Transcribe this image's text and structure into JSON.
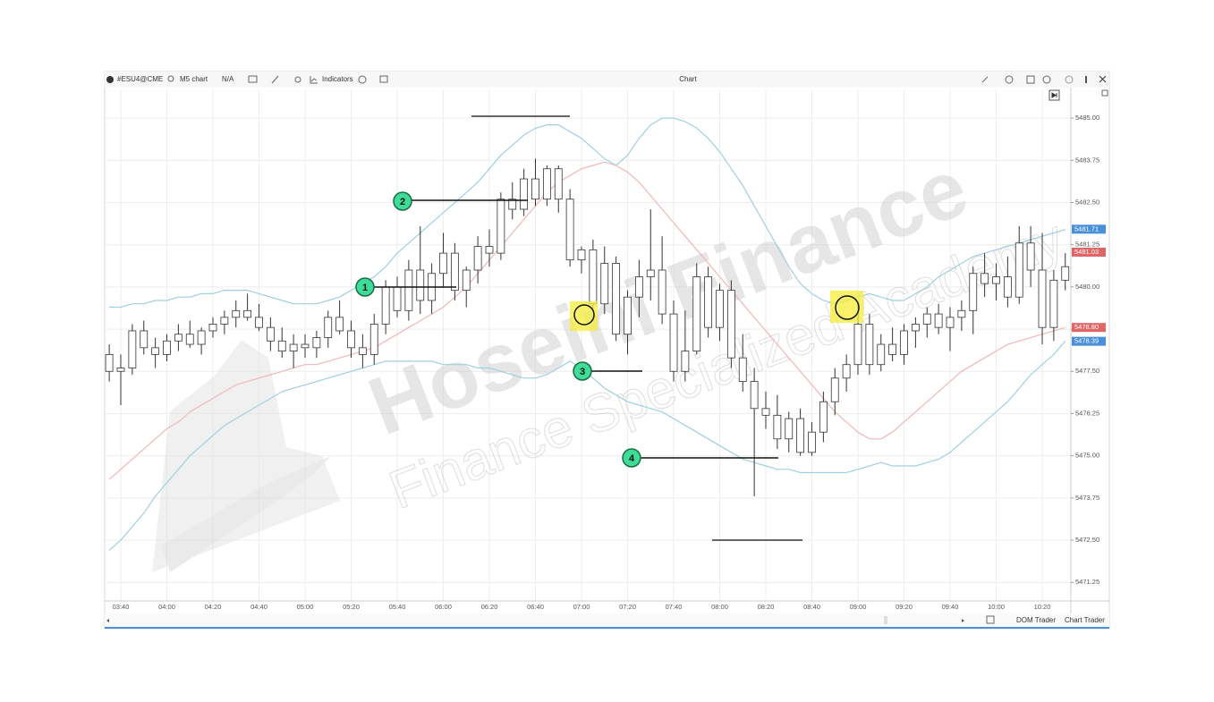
{
  "toolbar": {
    "symbol": "#ESU4@CME",
    "timeframe": "M5 chart",
    "account": "N/A",
    "indicators": "Indicators",
    "title": "Chart"
  },
  "footer": {
    "dom_trader": "DOM Trader",
    "chart_trader": "Chart Trader"
  },
  "watermark": {
    "brand": "Hoseini Finance",
    "tagline": "Finance Specialized Academy"
  },
  "annotations": [
    "1",
    "2",
    "3",
    "4"
  ],
  "chart_data": {
    "type": "candlestick",
    "categories": [
      null,
      "03:40",
      null,
      null,
      null,
      "04:00",
      null,
      null,
      null,
      "04:20",
      null,
      null,
      null,
      "04:40",
      null,
      null,
      null,
      "05:00",
      null,
      null,
      null,
      "05:20",
      null,
      null,
      null,
      "05:40",
      null,
      null,
      null,
      "06:00",
      null,
      null,
      null,
      "06:20",
      null,
      null,
      null,
      "06:40",
      null,
      null,
      null,
      "07:00",
      null,
      null,
      null,
      "07:20",
      null,
      null,
      null,
      "07:40",
      null,
      null,
      null,
      "08:00",
      null,
      null,
      null,
      "08:20",
      null,
      null,
      null,
      "08:40",
      null,
      null,
      null,
      "09:00",
      null,
      null,
      null,
      "09:20",
      null,
      null,
      null,
      "09:40",
      null,
      null,
      null,
      "10:00",
      null,
      null,
      null,
      "10:20",
      null,
      null
    ],
    "open": [
      5478.0,
      5477.5,
      5477.6,
      5478.7,
      5478.2,
      5478.0,
      5478.4,
      5478.6,
      5478.3,
      5478.7,
      5478.9,
      5479.1,
      5479.3,
      5479.1,
      5478.8,
      5478.4,
      5478.1,
      5478.3,
      5478.2,
      5478.5,
      5479.1,
      5478.7,
      5478.2,
      5478.0,
      5478.9,
      5480.0,
      5479.3,
      5480.5,
      5479.6,
      5480.4,
      5481.0,
      5479.9,
      5480.5,
      5481.2,
      5481.0,
      5482.6,
      5482.3,
      5483.2,
      5482.6,
      5483.5,
      5482.6,
      5480.8,
      5481.1,
      5479.5,
      5480.7,
      5478.6,
      5479.7,
      5480.3,
      5480.5,
      5479.2,
      5477.5,
      5478.1,
      5480.3,
      5478.8,
      5479.9,
      5477.9,
      5477.2,
      5476.4,
      5476.2,
      5475.5,
      5476.1,
      5475.1,
      5475.7,
      5476.6,
      5477.3,
      5477.7,
      5478.9,
      5477.7,
      5478.3,
      5478.0,
      5478.7,
      5478.9,
      5479.2,
      5478.8,
      5479.1,
      5479.3,
      5480.4,
      5480.1,
      5480.3,
      5479.7,
      5481.3,
      5480.5,
      5478.8,
      5480.2
    ],
    "high": [
      5478.3,
      5478.0,
      5478.9,
      5479.0,
      5478.5,
      5478.6,
      5478.9,
      5479.0,
      5478.8,
      5479.1,
      5479.3,
      5479.6,
      5479.8,
      5479.5,
      5479.1,
      5478.8,
      5478.6,
      5478.6,
      5478.7,
      5479.3,
      5479.6,
      5479.0,
      5478.6,
      5479.2,
      5480.2,
      5480.3,
      5480.8,
      5481.8,
      5480.7,
      5481.6,
      5481.3,
      5480.6,
      5481.5,
      5481.7,
      5482.8,
      5483.1,
      5483.5,
      5483.8,
      5483.6,
      5483.6,
      5482.9,
      5481.2,
      5481.4,
      5481.2,
      5480.9,
      5479.9,
      5480.8,
      5482.3,
      5481.5,
      5479.6,
      5479.3,
      5480.7,
      5480.6,
      5480.1,
      5480.2,
      5478.6,
      5477.6,
      5476.9,
      5476.8,
      5476.3,
      5476.4,
      5476.0,
      5476.9,
      5477.6,
      5478.0,
      5479.5,
      5479.2,
      5478.6,
      5478.8,
      5478.9,
      5479.1,
      5479.4,
      5479.5,
      5479.4,
      5479.6,
      5480.6,
      5481.0,
      5480.7,
      5480.9,
      5481.8,
      5481.8,
      5481.6,
      5480.5,
      5481.0
    ],
    "low": [
      5477.2,
      5476.5,
      5477.4,
      5478.0,
      5477.6,
      5477.8,
      5478.1,
      5478.2,
      5478.0,
      5478.5,
      5478.6,
      5478.8,
      5479.0,
      5478.7,
      5478.1,
      5477.9,
      5477.6,
      5477.9,
      5477.9,
      5478.2,
      5478.6,
      5477.9,
      5477.6,
      5477.7,
      5478.6,
      5479.1,
      5479.0,
      5479.2,
      5479.2,
      5480.0,
      5479.6,
      5479.4,
      5480.1,
      5480.6,
      5480.8,
      5482.0,
      5482.1,
      5482.4,
      5482.4,
      5482.2,
      5480.6,
      5480.4,
      5479.3,
      5479.2,
      5478.4,
      5478.0,
      5479.1,
      5479.6,
      5478.9,
      5477.2,
      5477.2,
      5478.0,
      5478.5,
      5478.4,
      5477.6,
      5476.9,
      5473.8,
      5475.8,
      5475.2,
      5475.1,
      5475.0,
      5475.0,
      5475.4,
      5476.2,
      5476.9,
      5477.4,
      5477.4,
      5477.5,
      5477.8,
      5477.7,
      5478.2,
      5478.5,
      5478.6,
      5478.1,
      5478.7,
      5478.6,
      5479.7,
      5479.6,
      5479.4,
      5479.5,
      5480.0,
      5478.3,
      5478.4,
      5479.9
    ],
    "close": [
      5477.5,
      5477.6,
      5478.7,
      5478.2,
      5478.0,
      5478.4,
      5478.6,
      5478.3,
      5478.7,
      5478.9,
      5479.1,
      5479.3,
      5479.1,
      5478.8,
      5478.4,
      5478.1,
      5478.3,
      5478.2,
      5478.5,
      5479.1,
      5478.7,
      5478.2,
      5478.0,
      5478.9,
      5480.0,
      5479.3,
      5480.5,
      5479.6,
      5480.4,
      5481.0,
      5479.9,
      5480.5,
      5481.2,
      5481.0,
      5482.6,
      5482.3,
      5483.2,
      5482.6,
      5483.5,
      5482.6,
      5480.8,
      5481.1,
      5479.5,
      5480.7,
      5478.6,
      5479.7,
      5480.3,
      5480.5,
      5479.2,
      5477.5,
      5478.1,
      5480.3,
      5478.8,
      5479.9,
      5477.9,
      5477.2,
      5476.4,
      5476.2,
      5475.5,
      5476.1,
      5475.1,
      5475.7,
      5476.6,
      5477.3,
      5477.7,
      5478.9,
      5477.7,
      5478.3,
      5478.0,
      5478.7,
      5478.9,
      5479.2,
      5478.8,
      5479.1,
      5479.3,
      5480.4,
      5480.1,
      5480.3,
      5479.7,
      5481.3,
      5480.5,
      5478.8,
      5480.2,
      5480.6
    ],
    "candle_color": "#ffffff",
    "candle_outline": "#333333",
    "overlays": [
      {
        "color": "#9fd0e0",
        "values": [
          5479.4,
          5479.4,
          5479.5,
          5479.5,
          5479.6,
          5479.6,
          5479.7,
          5479.7,
          5479.8,
          5479.8,
          5479.9,
          5479.9,
          5479.9,
          5479.8,
          5479.7,
          5479.6,
          5479.5,
          5479.5,
          5479.5,
          5479.6,
          5479.7,
          5479.9,
          5480.1,
          5480.3,
          5480.6,
          5481.0,
          5481.3,
          5481.6,
          5481.9,
          5482.2,
          5482.5,
          5482.8,
          5483.1,
          5483.5,
          5483.9,
          5484.2,
          5484.5,
          5484.7,
          5484.8,
          5484.8,
          5484.6,
          5484.4,
          5484.1,
          5483.8,
          5483.6,
          5483.9,
          5484.4,
          5484.8,
          5485.0,
          5485.0,
          5484.9,
          5484.7,
          5484.4,
          5484.0,
          5483.5,
          5483.0,
          5482.4,
          5481.8,
          5481.2,
          5480.6,
          5480.1,
          5479.8,
          5479.6,
          5479.5,
          5479.6,
          5479.7,
          5479.8,
          5479.7,
          5479.6,
          5479.6,
          5479.8,
          5480.0,
          5480.3,
          5480.5,
          5480.7,
          5480.9,
          5481.0,
          5481.1,
          5481.2,
          5481.3,
          5481.4,
          5481.5,
          5481.6,
          5481.7
        ]
      },
      {
        "color": "#eeb8b8",
        "values": [
          5474.3,
          5474.6,
          5474.9,
          5475.2,
          5475.5,
          5475.8,
          5476.0,
          5476.3,
          5476.5,
          5476.7,
          5476.9,
          5477.1,
          5477.2,
          5477.3,
          5477.4,
          5477.5,
          5477.6,
          5477.7,
          5477.7,
          5477.8,
          5477.9,
          5478.0,
          5478.1,
          5478.2,
          5478.4,
          5478.6,
          5478.8,
          5479.0,
          5479.2,
          5479.4,
          5479.7,
          5480.0,
          5480.4,
          5480.8,
          5481.2,
          5481.6,
          5482.0,
          5482.4,
          5482.8,
          5483.1,
          5483.3,
          5483.5,
          5483.6,
          5483.7,
          5483.6,
          5483.4,
          5483.1,
          5482.7,
          5482.3,
          5481.9,
          5481.5,
          5481.1,
          5480.7,
          5480.3,
          5479.9,
          5479.5,
          5479.1,
          5478.7,
          5478.3,
          5477.9,
          5477.5,
          5477.1,
          5476.7,
          5476.3,
          5476.0,
          5475.7,
          5475.5,
          5475.5,
          5475.7,
          5476.0,
          5476.3,
          5476.6,
          5476.9,
          5477.2,
          5477.5,
          5477.7,
          5477.9,
          5478.1,
          5478.3,
          5478.4,
          5478.5,
          5478.6,
          5478.7,
          5478.8
        ]
      },
      {
        "color": "#9fd0e0",
        "values": [
          5472.2,
          5472.5,
          5472.9,
          5473.3,
          5473.8,
          5474.2,
          5474.6,
          5475.0,
          5475.3,
          5475.6,
          5475.9,
          5476.1,
          5476.3,
          5476.5,
          5476.7,
          5476.9,
          5477.0,
          5477.1,
          5477.2,
          5477.3,
          5477.4,
          5477.5,
          5477.6,
          5477.7,
          5477.8,
          5477.8,
          5477.8,
          5477.8,
          5477.8,
          5477.7,
          5477.7,
          5477.7,
          5477.6,
          5477.6,
          5477.5,
          5477.4,
          5477.3,
          5477.3,
          5477.4,
          5477.6,
          5477.8,
          5477.6,
          5477.3,
          5477.0,
          5476.8,
          5476.6,
          5476.5,
          5476.4,
          5476.3,
          5476.1,
          5475.9,
          5475.7,
          5475.5,
          5475.3,
          5475.1,
          5474.9,
          5474.8,
          5474.7,
          5474.6,
          5474.6,
          5474.5,
          5474.5,
          5474.5,
          5474.5,
          5474.5,
          5474.6,
          5474.7,
          5474.8,
          5474.7,
          5474.7,
          5474.7,
          5474.8,
          5474.9,
          5475.1,
          5475.4,
          5475.7,
          5476.0,
          5476.3,
          5476.6,
          5477.0,
          5477.4,
          5477.7,
          5478.0,
          5478.4
        ]
      }
    ],
    "price_labels": [
      {
        "value": 5481.71,
        "label": "5481.71",
        "color": "#4a90d9"
      },
      {
        "value": 5481.03,
        "label": "5481.03",
        "color": "#e06666"
      },
      {
        "value": 5478.8,
        "label": "5478.80",
        "color": "#e06666"
      },
      {
        "value": 5478.39,
        "label": "5478.39",
        "color": "#4a90d9"
      }
    ],
    "ylim": [
      5470.7,
      5485.85
    ],
    "yticks": [
      {
        "value": 5485,
        "label": "5485.00"
      },
      {
        "value": 5483.75,
        "label": "5483.75"
      },
      {
        "value": 5482.5,
        "label": "5482.50"
      },
      {
        "value": 5481.25,
        "label": "5481.25"
      },
      {
        "value": 5480,
        "label": "5480.00"
      },
      {
        "value": 5478.75,
        "label": "5478.75"
      },
      {
        "value": 5477.5,
        "label": "5477.50"
      },
      {
        "value": 5476.25,
        "label": "5476.25"
      },
      {
        "value": 5475,
        "label": "5475.00"
      },
      {
        "value": 5473.75,
        "label": "5473.75"
      },
      {
        "value": 5472.5,
        "label": "5472.50"
      },
      {
        "value": 5471.25,
        "label": "5471.25"
      }
    ],
    "grid": true
  }
}
